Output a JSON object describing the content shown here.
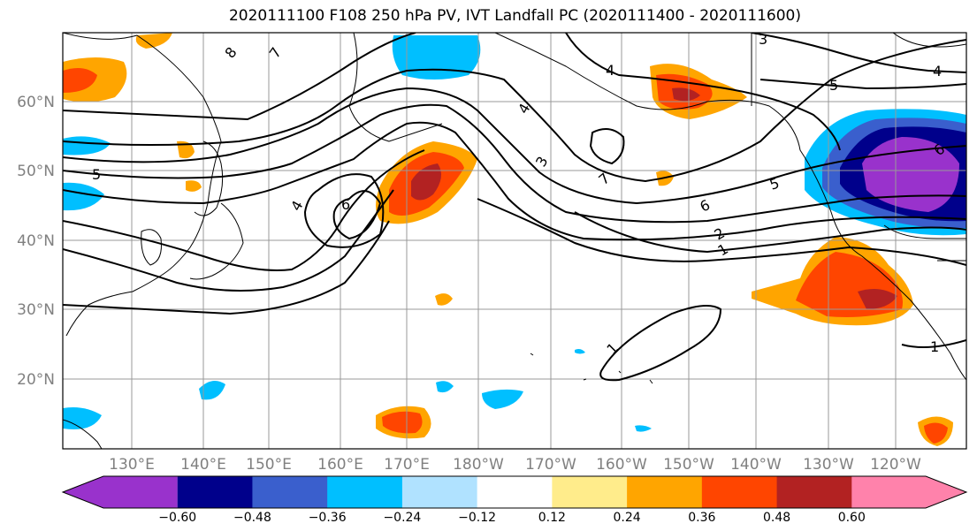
{
  "title": "2020111100 F108 250 hPa PV, IVT Landfall PC (2020111400 - 2020111600)",
  "lat_labels": [
    "60°N",
    "50°N",
    "40°N",
    "30°N",
    "20°N"
  ],
  "lon_labels": [
    "130°E",
    "140°E",
    "150°E",
    "160°E",
    "170°E",
    "180°W",
    "170°W",
    "160°W",
    "150°W",
    "140°W",
    "130°W",
    "120°W"
  ],
  "colorbar": {
    "ticks": [
      "−0.60",
      "−0.48",
      "−0.36",
      "−0.24",
      "−0.12",
      "0.12",
      "0.24",
      "0.36",
      "0.48",
      "0.60"
    ],
    "colors": [
      "#9932cc",
      "#00008b",
      "#3a5fcd",
      "#00bfff",
      "#b0e2ff",
      "#ffffff",
      "#ffec8b",
      "#ffa500",
      "#ff4500",
      "#b22222",
      "#ff82ab"
    ]
  },
  "contour_labels": [
    "8",
    "7",
    "6",
    "5",
    "4",
    "3",
    "2",
    "1"
  ]
}
